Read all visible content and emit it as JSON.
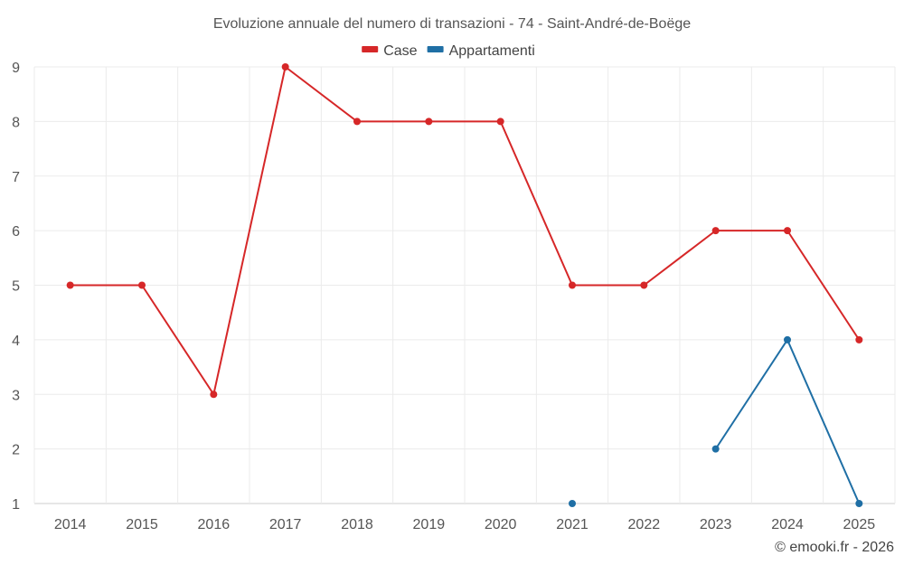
{
  "chart_data": {
    "type": "line",
    "title": "Evoluzione annuale del numero di transazioni - 74 - Saint-André-de-Boëge",
    "categories": [
      "2014",
      "2015",
      "2016",
      "2017",
      "2018",
      "2019",
      "2020",
      "2021",
      "2022",
      "2023",
      "2024",
      "2025"
    ],
    "ylim": [
      1,
      9
    ],
    "yticks": [
      1,
      2,
      3,
      4,
      5,
      6,
      7,
      8,
      9
    ],
    "grid": true,
    "legend_position": "top-center",
    "series": [
      {
        "name": "Case",
        "color": "#d62728",
        "values": [
          5,
          5,
          3,
          9,
          8,
          8,
          8,
          5,
          5,
          6,
          6,
          4
        ]
      },
      {
        "name": "Appartamenti",
        "color": "#1f6fa5",
        "values": [
          null,
          null,
          null,
          null,
          null,
          null,
          null,
          1,
          null,
          2,
          4,
          1
        ]
      }
    ],
    "xlabel": "",
    "ylabel": ""
  },
  "credit": "© emooki.fr - 2026"
}
